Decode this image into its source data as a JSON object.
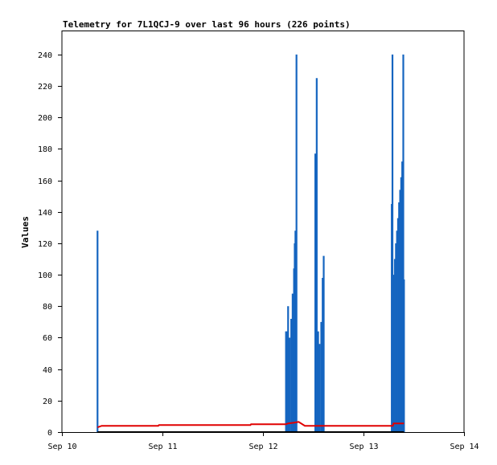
{
  "chart_data": {
    "type": "line",
    "title": "Telemetry for 7L1QCJ-9 over last 96 hours (226 points)",
    "xlabel": "",
    "ylabel": "Values",
    "x_ticks": [
      "Sep 10",
      "Sep 11",
      "Sep 12",
      "Sep 13",
      "Sep 14"
    ],
    "y_ticks": [
      0,
      20,
      40,
      60,
      80,
      100,
      120,
      140,
      160,
      180,
      200,
      220,
      240
    ],
    "xlim": [
      "Sep 10 00:00",
      "Sep 14 00:00"
    ],
    "ylim": [
      0,
      255
    ],
    "grid": false,
    "series": [
      {
        "color": "#1565c0",
        "style": "impulse",
        "points": [
          [
            "Sep 10 08:30",
            128
          ],
          [
            "Sep 12 05:30",
            64
          ],
          [
            "Sep 12 05:40",
            64
          ],
          [
            "Sep 12 06:00",
            80
          ],
          [
            "Sep 12 06:20",
            60
          ],
          [
            "Sep 12 06:45",
            72
          ],
          [
            "Sep 12 07:05",
            88
          ],
          [
            "Sep 12 07:25",
            104
          ],
          [
            "Sep 12 07:35",
            120
          ],
          [
            "Sep 12 07:45",
            128
          ],
          [
            "Sep 12 08:00",
            240
          ],
          [
            "Sep 12 12:30",
            177
          ],
          [
            "Sep 12 12:50",
            225
          ],
          [
            "Sep 12 13:10",
            64
          ],
          [
            "Sep 12 13:30",
            56
          ],
          [
            "Sep 12 13:55",
            70
          ],
          [
            "Sep 12 14:15",
            98
          ],
          [
            "Sep 12 14:30",
            112
          ],
          [
            "Sep 13 06:45",
            145
          ],
          [
            "Sep 13 06:55",
            240
          ],
          [
            "Sep 13 07:05",
            50
          ],
          [
            "Sep 13 07:15",
            100
          ],
          [
            "Sep 13 07:30",
            110
          ],
          [
            "Sep 13 07:45",
            120
          ],
          [
            "Sep 13 08:00",
            128
          ],
          [
            "Sep 13 08:15",
            136
          ],
          [
            "Sep 13 08:30",
            146
          ],
          [
            "Sep 13 08:45",
            154
          ],
          [
            "Sep 13 09:00",
            162
          ],
          [
            "Sep 13 09:15",
            172
          ],
          [
            "Sep 13 09:30",
            240
          ],
          [
            "Sep 13 09:40",
            97
          ]
        ]
      },
      {
        "color": "#e00000",
        "style": "line",
        "points": [
          [
            "Sep 10 08:30",
            3
          ],
          [
            "Sep 10 09:30",
            4
          ],
          [
            "Sep 10 23:00",
            4
          ],
          [
            "Sep 10 23:10",
            4.5
          ],
          [
            "Sep 11 21:00",
            4.5
          ],
          [
            "Sep 11 21:10",
            5
          ],
          [
            "Sep 12 05:30",
            5
          ],
          [
            "Sep 12 06:00",
            5.5
          ],
          [
            "Sep 12 07:30",
            6
          ],
          [
            "Sep 12 08:30",
            6.5
          ],
          [
            "Sep 12 10:00",
            4
          ],
          [
            "Sep 13 07:00",
            4
          ],
          [
            "Sep 13 07:10",
            5.5
          ],
          [
            "Sep 13 09:40",
            5.5
          ]
        ]
      },
      {
        "color": "#000000",
        "style": "line",
        "points": [
          [
            "Sep 10 08:30",
            0
          ],
          [
            "Sep 13 09:40",
            0
          ]
        ]
      }
    ]
  }
}
